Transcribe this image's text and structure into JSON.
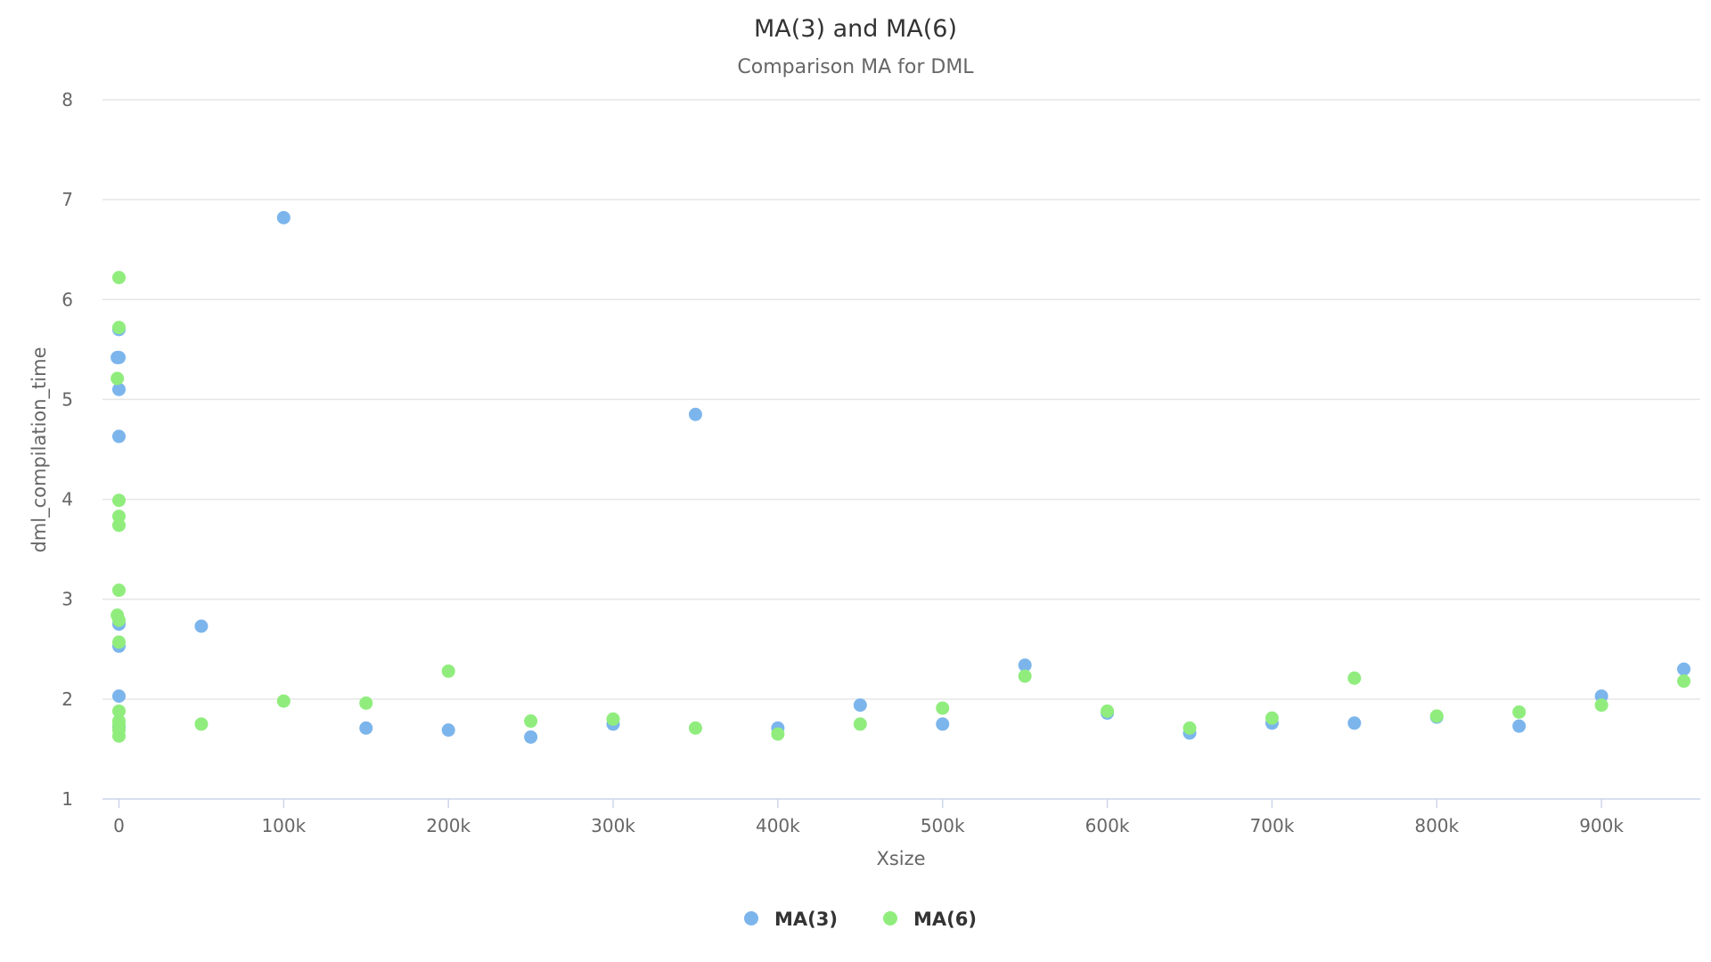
{
  "chart_data": {
    "type": "scatter",
    "title": "MA(3) and MA(6)",
    "subtitle": "Comparison MA for DML",
    "xlabel": "Xsize",
    "ylabel": "dml_compilation_time",
    "xlim": [
      -10000,
      960000
    ],
    "ylim": [
      1,
      8
    ],
    "x_ticks": [
      0,
      100000,
      200000,
      300000,
      400000,
      500000,
      600000,
      700000,
      800000,
      900000
    ],
    "x_tick_labels": [
      "0",
      "100k",
      "200k",
      "300k",
      "400k",
      "500k",
      "600k",
      "700k",
      "800k",
      "900k"
    ],
    "y_ticks": [
      1,
      2,
      3,
      4,
      5,
      6,
      7,
      8
    ],
    "y_tick_labels": [
      "1",
      "2",
      "3",
      "4",
      "5",
      "6",
      "7",
      "8"
    ],
    "grid": true,
    "legend_position": "bottom-center",
    "series": [
      {
        "name": "MA(3)",
        "color": "#7cb5ec",
        "points": [
          [
            -1000,
            5.42
          ],
          [
            0,
            5.42
          ],
          [
            0,
            5.7
          ],
          [
            0,
            5.1
          ],
          [
            0,
            4.63
          ],
          [
            0,
            2.75
          ],
          [
            0,
            2.53
          ],
          [
            0,
            2.03
          ],
          [
            0,
            1.72
          ],
          [
            50000,
            2.73
          ],
          [
            100000,
            6.82
          ],
          [
            150000,
            1.71
          ],
          [
            200000,
            1.69
          ],
          [
            250000,
            1.62
          ],
          [
            300000,
            1.75
          ],
          [
            350000,
            4.85
          ],
          [
            400000,
            1.71
          ],
          [
            450000,
            1.94
          ],
          [
            500000,
            1.75
          ],
          [
            550000,
            2.34
          ],
          [
            600000,
            1.86
          ],
          [
            650000,
            1.66
          ],
          [
            700000,
            1.76
          ],
          [
            750000,
            1.76
          ],
          [
            800000,
            1.82
          ],
          [
            850000,
            1.73
          ],
          [
            900000,
            2.03
          ],
          [
            950000,
            2.3
          ]
        ]
      },
      {
        "name": "MA(6)",
        "color": "#90ed7d",
        "points": [
          [
            0,
            6.22
          ],
          [
            0,
            5.72
          ],
          [
            -1000,
            5.21
          ],
          [
            0,
            3.99
          ],
          [
            0,
            3.83
          ],
          [
            0,
            3.74
          ],
          [
            0,
            3.09
          ],
          [
            -1000,
            2.84
          ],
          [
            0,
            2.79
          ],
          [
            0,
            2.57
          ],
          [
            0,
            1.88
          ],
          [
            0,
            1.78
          ],
          [
            0,
            1.74
          ],
          [
            0,
            1.69
          ],
          [
            0,
            1.63
          ],
          [
            50000,
            1.75
          ],
          [
            100000,
            1.98
          ],
          [
            150000,
            1.96
          ],
          [
            200000,
            2.28
          ],
          [
            250000,
            1.78
          ],
          [
            300000,
            1.8
          ],
          [
            350000,
            1.71
          ],
          [
            400000,
            1.65
          ],
          [
            450000,
            1.75
          ],
          [
            500000,
            1.91
          ],
          [
            550000,
            2.23
          ],
          [
            600000,
            1.88
          ],
          [
            650000,
            1.71
          ],
          [
            700000,
            1.81
          ],
          [
            750000,
            2.21
          ],
          [
            800000,
            1.83
          ],
          [
            850000,
            1.87
          ],
          [
            900000,
            1.94
          ],
          [
            950000,
            2.18
          ]
        ]
      }
    ]
  }
}
